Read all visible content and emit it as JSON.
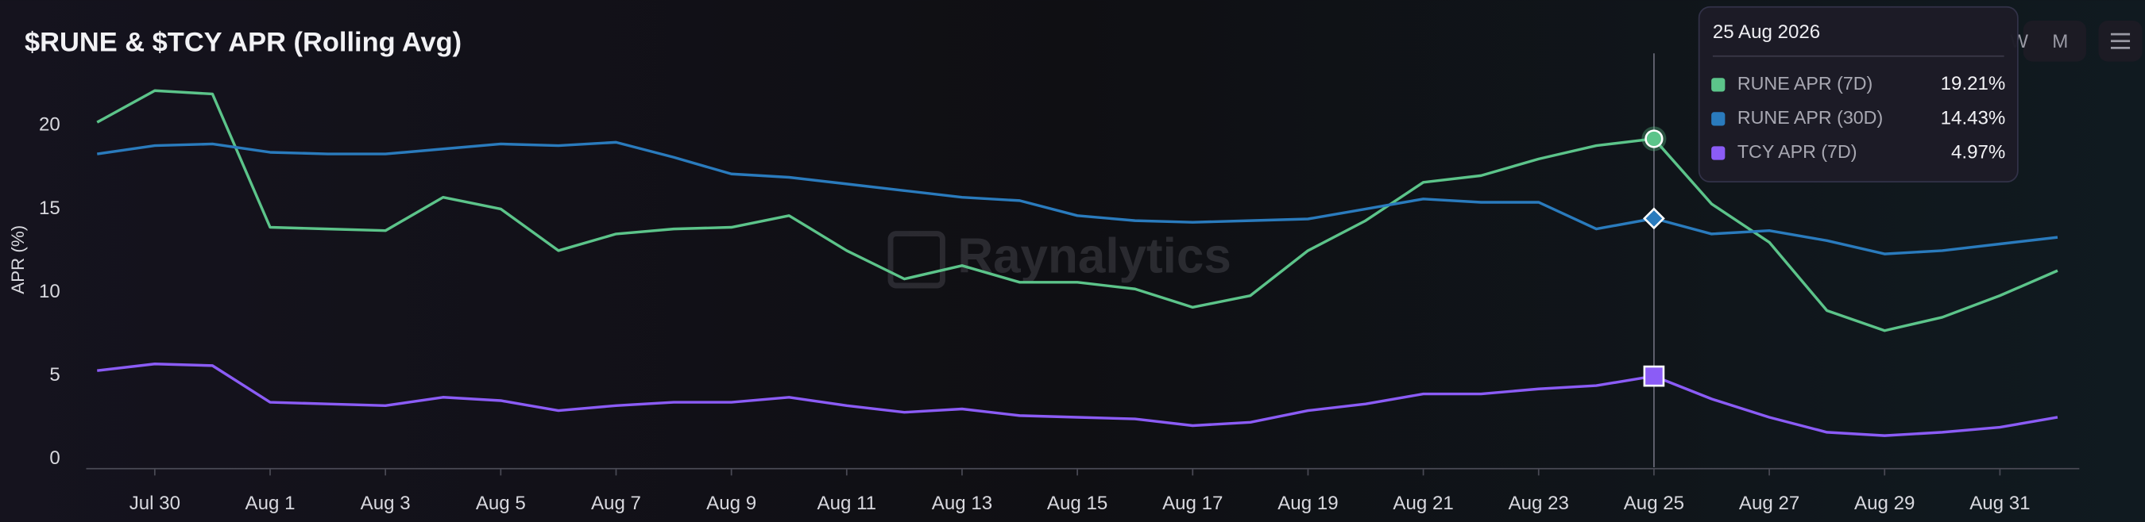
{
  "chart_data": {
    "type": "line",
    "title": "$RUNE & $TCY APR (Rolling Avg)",
    "y_label": "APR (%)",
    "watermark": "Raynalytics",
    "buttons": [
      "W",
      "M"
    ],
    "x": [
      "29 Jul 2026",
      "30 Jul 2026",
      "31 Jul 2026",
      "1 Aug 2026",
      "2 Aug 2026",
      "3 Aug 2026",
      "4 Aug 2026",
      "5 Aug 2026",
      "6 Aug 2026",
      "7 Aug 2026",
      "8 Aug 2026",
      "9 Aug 2026",
      "10 Aug 2026",
      "11 Aug 2026",
      "12 Aug 2026",
      "13 Aug 2026",
      "14 Aug 2026",
      "15 Aug 2026",
      "16 Aug 2026",
      "17 Aug 2026",
      "18 Aug 2026",
      "19 Aug 2026",
      "20 Aug 2026",
      "21 Aug 2026",
      "22 Aug 2026",
      "23 Aug 2026",
      "24 Aug 2026",
      "25 Aug 2026",
      "26 Aug 2026",
      "27 Aug 2026",
      "28 Aug 2026",
      "29 Aug 2026",
      "30 Aug 2026",
      "31 Aug 2026",
      "1 Sep 2026"
    ],
    "xticks": [
      {
        "value": "30 Jul 2026",
        "label": "Jul 30"
      },
      {
        "value": "1 Aug 2026",
        "label": "Aug 1"
      },
      {
        "value": "3 Aug 2026",
        "label": "Aug 3"
      },
      {
        "value": "5 Aug 2026",
        "label": "Aug 5"
      },
      {
        "value": "7 Aug 2026",
        "label": "Aug 7"
      },
      {
        "value": "9 Aug 2026",
        "label": "Aug 9"
      },
      {
        "value": "11 Aug 2026",
        "label": "Aug 11"
      },
      {
        "value": "13 Aug 2026",
        "label": "Aug 13"
      },
      {
        "value": "15 Aug 2026",
        "label": "Aug 15"
      },
      {
        "value": "17 Aug 2026",
        "label": "Aug 17"
      },
      {
        "value": "19 Aug 2026",
        "label": "Aug 19"
      },
      {
        "value": "21 Aug 2026",
        "label": "Aug 21"
      },
      {
        "value": "23 Aug 2026",
        "label": "Aug 23"
      },
      {
        "value": "25 Aug 2026",
        "label": "Aug 25"
      },
      {
        "value": "27 Aug 2026",
        "label": "Aug 27"
      },
      {
        "value": "29 Aug 2026",
        "label": "Aug 29"
      },
      {
        "value": "31 Aug 2026",
        "label": "Aug 31"
      }
    ],
    "ylim": [
      -0.5,
      24.5
    ],
    "yticks": [
      0,
      5,
      10,
      15,
      20
    ],
    "grid": false,
    "series": [
      {
        "name": "RUNE APR (7D)",
        "color": "#5cc48a",
        "marker": "circle",
        "values": [
          20.2,
          22.1,
          21.9,
          13.9,
          13.8,
          13.7,
          15.7,
          15.0,
          12.5,
          13.5,
          13.8,
          13.9,
          14.6,
          12.5,
          10.8,
          11.6,
          10.6,
          10.6,
          10.2,
          9.1,
          9.8,
          12.5,
          14.3,
          16.6,
          17.0,
          18.0,
          18.8,
          19.21,
          15.3,
          13.0,
          8.9,
          7.7,
          8.5,
          9.8,
          11.3
        ],
        "value_labels": [
          null,
          null,
          null,
          null,
          null,
          null,
          null,
          null,
          null,
          null,
          null,
          null,
          null,
          null,
          null,
          null,
          null,
          null,
          null,
          null,
          null,
          null,
          null,
          null,
          null,
          null,
          null,
          "19.21%",
          null,
          null,
          null,
          null,
          null,
          null,
          null
        ]
      },
      {
        "name": "RUNE APR (30D)",
        "color": "#2a7bbd",
        "marker": "diamond",
        "values": [
          18.3,
          18.8,
          18.9,
          18.4,
          18.3,
          18.3,
          18.6,
          18.9,
          18.8,
          19.0,
          18.1,
          17.1,
          16.9,
          16.5,
          16.1,
          15.7,
          15.5,
          14.6,
          14.3,
          14.2,
          14.3,
          14.4,
          15.0,
          15.6,
          15.4,
          15.4,
          13.8,
          14.43,
          13.5,
          13.7,
          13.1,
          12.3,
          12.5,
          12.9,
          13.3
        ],
        "value_labels": [
          null,
          null,
          null,
          null,
          null,
          null,
          null,
          null,
          null,
          null,
          null,
          null,
          null,
          null,
          null,
          null,
          null,
          null,
          null,
          null,
          null,
          null,
          null,
          null,
          null,
          null,
          null,
          "14.43%",
          null,
          null,
          null,
          null,
          null,
          null,
          null
        ]
      },
      {
        "name": "TCY APR (7D)",
        "color": "#8b5cf6",
        "marker": "square",
        "values": [
          5.3,
          5.7,
          5.6,
          3.4,
          3.3,
          3.2,
          3.7,
          3.5,
          2.9,
          3.2,
          3.4,
          3.4,
          3.7,
          3.2,
          2.8,
          3.0,
          2.6,
          2.5,
          2.4,
          2.0,
          2.2,
          2.9,
          3.3,
          3.9,
          3.9,
          4.2,
          4.4,
          4.97,
          3.6,
          2.5,
          1.6,
          1.4,
          1.6,
          1.9,
          2.5
        ],
        "value_labels": [
          null,
          null,
          null,
          null,
          null,
          null,
          null,
          null,
          null,
          null,
          null,
          null,
          null,
          null,
          null,
          null,
          null,
          null,
          null,
          null,
          null,
          null,
          null,
          null,
          null,
          null,
          null,
          "4.97%",
          null,
          null,
          null,
          null,
          null,
          null,
          null
        ]
      }
    ]
  }
}
